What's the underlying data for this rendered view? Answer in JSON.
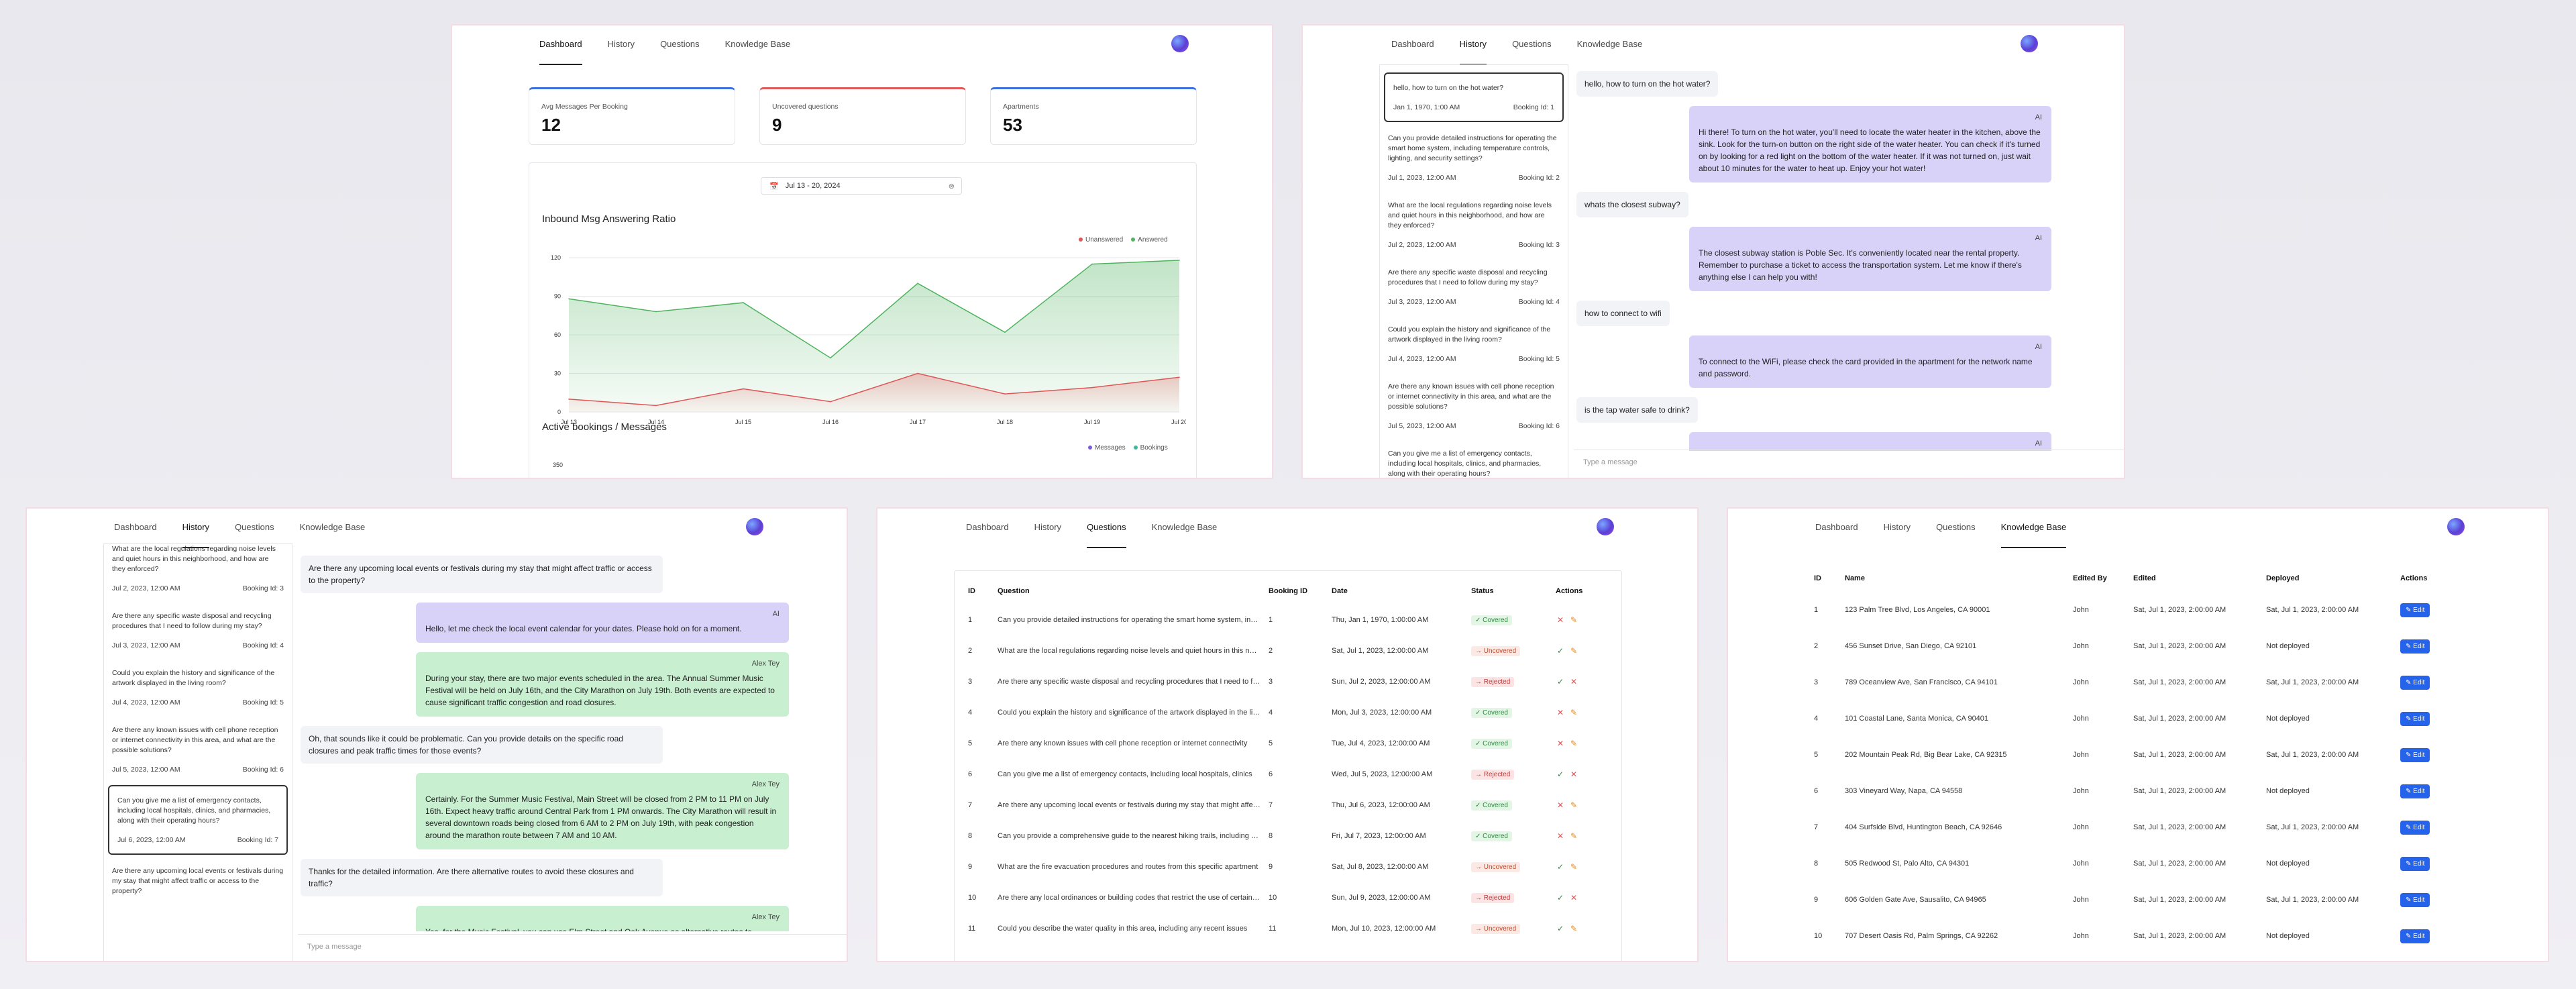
{
  "nav": {
    "tabs": [
      "Dashboard",
      "History",
      "Questions",
      "Knowledge Base"
    ]
  },
  "dashboard": {
    "cards": [
      {
        "label": "Avg Messages Per Booking",
        "value": "12",
        "color": "#3b6fe0"
      },
      {
        "label": "Uncovered questions",
        "value": "9",
        "color": "#e05a5a"
      },
      {
        "label": "Apartments",
        "value": "53",
        "color": "#3b6fe0"
      }
    ],
    "date_range": "Jul 13 - 20, 2024",
    "chart1_title": "Inbound Msg Answering Ratio",
    "legend1": [
      "Unanswered",
      "Answered"
    ],
    "chart2_title": "Active bookings / Messages",
    "legend2": [
      "Messages",
      "Bookings"
    ],
    "chart2_ytop": "350"
  },
  "chart_data": [
    {
      "type": "area",
      "title": "Inbound Msg Answering Ratio",
      "x": [
        "Jul 13",
        "Jul 14",
        "Jul 15",
        "Jul 16",
        "Jul 17",
        "Jul 18",
        "Jul 19",
        "Jul 20"
      ],
      "yticks": [
        0,
        30,
        60,
        90,
        120
      ],
      "ylim": [
        0,
        120
      ],
      "series": [
        {
          "name": "Answered",
          "color": "#4fb35f",
          "values": [
            88,
            78,
            85,
            42,
            100,
            62,
            115,
            118
          ]
        },
        {
          "name": "Unanswered",
          "color": "#e05555",
          "values": [
            10,
            5,
            18,
            8,
            30,
            14,
            19,
            27
          ]
        }
      ],
      "legend": "top-right"
    }
  ],
  "history": {
    "questions": [
      {
        "q": "hello, how to turn on the hot water?",
        "date": "Jan 1, 1970, 1:00 AM",
        "booking": "Booking Id: 1"
      },
      {
        "q": "Can you provide detailed instructions for operating the smart home system, including temperature controls, lighting, and security settings?",
        "date": "Jul 1, 2023, 12:00 AM",
        "booking": "Booking Id: 2"
      },
      {
        "q": "What are the local regulations regarding noise levels and quiet hours in this neighborhood, and how are they enforced?",
        "date": "Jul 2, 2023, 12:00 AM",
        "booking": "Booking Id: 3"
      },
      {
        "q": "Are there any specific waste disposal and recycling procedures that I need to follow during my stay?",
        "date": "Jul 3, 2023, 12:00 AM",
        "booking": "Booking Id: 4"
      },
      {
        "q": "Could you explain the history and significance of the artwork displayed in the living room?",
        "date": "Jul 4, 2023, 12:00 AM",
        "booking": "Booking Id: 5"
      },
      {
        "q": "Are there any known issues with cell phone reception or internet connectivity in this area, and what are the possible solutions?",
        "date": "Jul 5, 2023, 12:00 AM",
        "booking": "Booking Id: 6"
      },
      {
        "q": "Can you give me a list of emergency contacts, including local hospitals, clinics, and pharmacies, along with their operating hours?",
        "date": "Jul 6, 2023, 12:00 AM",
        "booking": "Booking Id: 7"
      },
      {
        "q": "Are there any upcoming local events or festivals during my stay that might affect traffic or access to the property?",
        "date": "",
        "booking": ""
      }
    ],
    "chat1": [
      {
        "role": "user",
        "text": "hello, how to turn on the hot water?"
      },
      {
        "role": "ai",
        "who": "AI",
        "text": "Hi there! To turn on the hot water, you'll need to locate the water heater in the kitchen, above the sink. Look for the turn-on button on the right side of the water heater. You can check if it's turned on by looking for a red light on the bottom of the water heater. If it was not turned on, just wait about 10 minutes for the water to heat up. Enjoy your hot water!"
      },
      {
        "role": "user",
        "text": "whats the closest subway?"
      },
      {
        "role": "ai",
        "who": "AI",
        "text": "The closest subway station is Poble Sec. It's conveniently located near the rental property. Remember to purchase a ticket to access the transportation system. Let me know if there's anything else I can help you with!"
      },
      {
        "role": "user",
        "text": "how to connect to wifi"
      },
      {
        "role": "ai",
        "who": "AI",
        "text": "To connect to the WiFi, please check the card provided in the apartment for the network name and password."
      },
      {
        "role": "user",
        "text": "is the tap water safe to drink?"
      },
      {
        "role": "ai",
        "who": "AI",
        "text": ""
      }
    ],
    "chat2": [
      {
        "role": "user",
        "text": "Are there any upcoming local events or festivals during my stay that might affect traffic or access to the property?"
      },
      {
        "role": "ai",
        "who": "AI",
        "text": "Hello, let me check the local event calendar for your dates. Please hold on for a moment."
      },
      {
        "role": "alex",
        "who": "Alex Tey",
        "text": "During your stay, there are two major events scheduled in the area. The Annual Summer Music Festival will be held on July 16th, and the City Marathon on July 19th. Both events are expected to cause significant traffic congestion and road closures."
      },
      {
        "role": "user",
        "text": "Oh, that sounds like it could be problematic. Can you provide details on the specific road closures and peak traffic times for those events?"
      },
      {
        "role": "alex",
        "who": "Alex Tey",
        "text": "Certainly. For the Summer Music Festival, Main Street will be closed from 2 PM to 11 PM on July 16th. Expect heavy traffic around Central Park from 1 PM onwards. The City Marathon will result in several downtown roads being closed from 6 AM to 2 PM on July 19th, with peak congestion around the marathon route between 7 AM and 10 AM."
      },
      {
        "role": "user",
        "text": "Thanks for the detailed information. Are there alternative routes to avoid these closures and traffic?"
      },
      {
        "role": "alex",
        "who": "Alex Tey",
        "text": "Yes, for the Music Festival, you can use Elm Street and Oak Avenue as alternative routes to"
      }
    ],
    "input_placeholder": "Type a message"
  },
  "questions_table": {
    "headers": [
      "ID",
      "Question",
      "Booking ID",
      "Date",
      "Status",
      "Actions"
    ],
    "rows": [
      [
        "1",
        "Can you provide detailed instructions for operating the smart home system, including temperature controls",
        "1",
        "Thu, Jan 1, 1970, 1:00:00 AM",
        "Covered"
      ],
      [
        "2",
        "What are the local regulations regarding noise levels and quiet hours in this neighborhood",
        "2",
        "Sat, Jul 1, 2023, 12:00:00 AM",
        "Uncovered"
      ],
      [
        "3",
        "Are there any specific waste disposal and recycling procedures that I need to follow",
        "3",
        "Sun, Jul 2, 2023, 12:00:00 AM",
        "Rejected"
      ],
      [
        "4",
        "Could you explain the history and significance of the artwork displayed in the living room",
        "4",
        "Mon, Jul 3, 2023, 12:00:00 AM",
        "Covered"
      ],
      [
        "5",
        "Are there any known issues with cell phone reception or internet connectivity",
        "5",
        "Tue, Jul 4, 2023, 12:00:00 AM",
        "Covered"
      ],
      [
        "6",
        "Can you give me a list of emergency contacts, including local hospitals, clinics",
        "6",
        "Wed, Jul 5, 2023, 12:00:00 AM",
        "Rejected"
      ],
      [
        "7",
        "Are there any upcoming local events or festivals during my stay that might affect traffic",
        "7",
        "Thu, Jul 6, 2023, 12:00:00 AM",
        "Covered"
      ],
      [
        "8",
        "Can you provide a comprehensive guide to the nearest hiking trails, including difficulty",
        "8",
        "Fri, Jul 7, 2023, 12:00:00 AM",
        "Covered"
      ],
      [
        "9",
        "What are the fire evacuation procedures and routes from this specific apartment",
        "9",
        "Sat, Jul 8, 2023, 12:00:00 AM",
        "Uncovered"
      ],
      [
        "10",
        "Are there any local ordinances or building codes that restrict the use of certain appliances",
        "10",
        "Sun, Jul 9, 2023, 12:00:00 AM",
        "Rejected"
      ],
      [
        "11",
        "Could you describe the water quality in this area, including any recent issues",
        "11",
        "Mon, Jul 10, 2023, 12:00:00 AM",
        "Uncovered"
      ]
    ]
  },
  "kb_table": {
    "headers": [
      "ID",
      "Name",
      "Edited By",
      "Edited",
      "Deployed",
      "Actions"
    ],
    "edit_label": "Edit",
    "rows": [
      [
        "1",
        "123 Palm Tree Blvd, Los Angeles, CA 90001",
        "John",
        "Sat, Jul 1, 2023, 2:00:00 AM",
        "Sat, Jul 1, 2023, 2:00:00 AM"
      ],
      [
        "2",
        "456 Sunset Drive, San Diego, CA 92101",
        "John",
        "Sat, Jul 1, 2023, 2:00:00 AM",
        "Not deployed"
      ],
      [
        "3",
        "789 Oceanview Ave, San Francisco, CA 94101",
        "John",
        "Sat, Jul 1, 2023, 2:00:00 AM",
        "Sat, Jul 1, 2023, 2:00:00 AM"
      ],
      [
        "4",
        "101 Coastal Lane, Santa Monica, CA 90401",
        "John",
        "Sat, Jul 1, 2023, 2:00:00 AM",
        "Not deployed"
      ],
      [
        "5",
        "202 Mountain Peak Rd, Big Bear Lake, CA 92315",
        "John",
        "Sat, Jul 1, 2023, 2:00:00 AM",
        "Sat, Jul 1, 2023, 2:00:00 AM"
      ],
      [
        "6",
        "303 Vineyard Way, Napa, CA 94558",
        "John",
        "Sat, Jul 1, 2023, 2:00:00 AM",
        "Not deployed"
      ],
      [
        "7",
        "404 Surfside Blvd, Huntington Beach, CA 92646",
        "John",
        "Sat, Jul 1, 2023, 2:00:00 AM",
        "Sat, Jul 1, 2023, 2:00:00 AM"
      ],
      [
        "8",
        "505 Redwood St, Palo Alto, CA 94301",
        "John",
        "Sat, Jul 1, 2023, 2:00:00 AM",
        "Not deployed"
      ],
      [
        "9",
        "606 Golden Gate Ave, Sausalito, CA 94965",
        "John",
        "Sat, Jul 1, 2023, 2:00:00 AM",
        "Sat, Jul 1, 2023, 2:00:00 AM"
      ],
      [
        "10",
        "707 Desert Oasis Rd, Palm Springs, CA 92262",
        "John",
        "Sat, Jul 1, 2023, 2:00:00 AM",
        "Not deployed"
      ]
    ]
  },
  "colors": {
    "covered": "#2f8a3e",
    "uncovered": "#c24a2b",
    "rejected": "#c23b3b",
    "accent": "#2563eb"
  }
}
